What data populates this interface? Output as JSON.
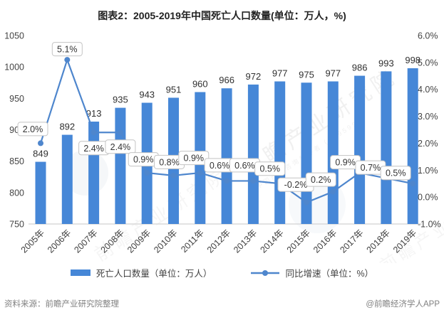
{
  "chart_data": {
    "type": "bar",
    "title": "图表2：2005-2019年中国死亡人口数量(单位：万人，%)",
    "categories": [
      "2005年",
      "2006年",
      "2007年",
      "2008年",
      "2009年",
      "2010年",
      "2011年",
      "2012年",
      "2013年",
      "2014年",
      "2015年",
      "2016年",
      "2017年",
      "2018年",
      "2019年"
    ],
    "series": [
      {
        "name": "死亡人口数量（单位：万人）",
        "type": "bar",
        "axis": "left",
        "color": "#4687D7",
        "values": [
          849,
          892,
          913,
          935,
          943,
          951,
          960,
          966,
          972,
          977,
          975,
          977,
          986,
          993,
          998
        ]
      },
      {
        "name": "同比增速（单位：%）",
        "type": "line",
        "axis": "right",
        "color": "#4E86CD",
        "values": [
          2.0,
          5.1,
          2.4,
          2.4,
          0.9,
          0.8,
          0.9,
          0.6,
          0.6,
          0.5,
          -0.2,
          0.2,
          0.9,
          0.7,
          0.5
        ],
        "labels": [
          "2.0%",
          "5.1%",
          "2.4%",
          "2.4%",
          "0.9%",
          "0.8%",
          "0.9%",
          "0.6%",
          "0.6%",
          "0.5%",
          "-0.2%",
          "0.2%",
          "0.9%",
          "0.7%",
          "0.5%"
        ]
      }
    ],
    "left_axis": {
      "min": 750,
      "max": 1050,
      "step": 50,
      "ticks": [
        "1050",
        "1000",
        "950",
        "900",
        "850",
        "800",
        "750"
      ]
    },
    "right_axis": {
      "min": -1.0,
      "max": 6.0,
      "step": 1.0,
      "ticks": [
        "6.0%",
        "5.0%",
        "4.0%",
        "3.0%",
        "2.0%",
        "1.0%",
        "0.0%",
        "-1.0%"
      ]
    },
    "legend_position": "bottom",
    "grid": false
  },
  "watermark": {
    "text": "前瞻产业研究院",
    "subtext": "中国产业咨询领导者（839599）"
  },
  "footer": {
    "source": "资料来源：前瞻产业研究院整理",
    "credit": "@前瞻经济学人APP"
  }
}
